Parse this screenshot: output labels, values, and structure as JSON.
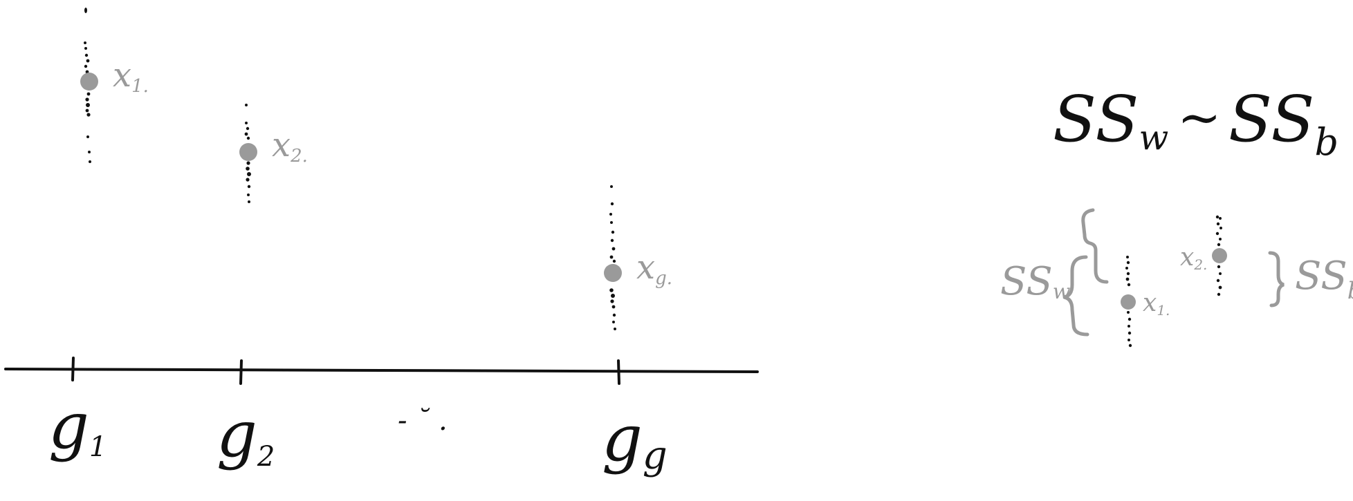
{
  "colors": {
    "ink": "#111111",
    "mean_marker": "#9a9a9a",
    "annotation": "#9a9a9a",
    "background": "#ffffff"
  },
  "groups": [
    {
      "axis_label": "g",
      "axis_subscript": "1",
      "mean_label": "x",
      "mean_subscript": "1."
    },
    {
      "axis_label": "g",
      "axis_subscript": "2",
      "mean_label": "x",
      "mean_subscript": "2."
    },
    {
      "axis_label": "g",
      "axis_subscript": "g",
      "mean_label": "x",
      "mean_subscript": "g."
    }
  ],
  "axis_ellipsis": "- ˘ .",
  "relation": {
    "left": "SS",
    "left_subscript": "w",
    "operator": "~",
    "right": "SS",
    "right_subscript": "b"
  },
  "inset": {
    "ssw_label": "SS",
    "ssw_subscript": "w",
    "ssb_label": "SS",
    "ssb_subscript": "b",
    "mean1_label": "x",
    "mean1_subscript": "1.",
    "mean2_label": "x",
    "mean2_subscript": "2."
  }
}
